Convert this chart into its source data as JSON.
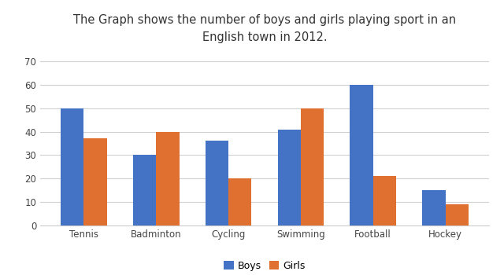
{
  "title": "The Graph shows the number of boys and girls playing sport in an\nEnglish town in 2012.",
  "categories": [
    "Tennis",
    "Badminton",
    "Cycling",
    "Swimming",
    "Football",
    "Hockey"
  ],
  "boys": [
    50,
    30,
    36,
    41,
    60,
    15
  ],
  "girls": [
    37,
    40,
    20,
    50,
    21,
    9
  ],
  "boys_color": "#4472C4",
  "girls_color": "#E07030",
  "ylim": [
    0,
    75
  ],
  "yticks": [
    0,
    10,
    20,
    30,
    40,
    50,
    60,
    70
  ],
  "bar_width": 0.32,
  "legend_labels": [
    "Boys",
    "Girls"
  ],
  "background_color": "#ffffff",
  "title_fontsize": 10.5,
  "tick_fontsize": 8.5,
  "legend_fontsize": 9
}
